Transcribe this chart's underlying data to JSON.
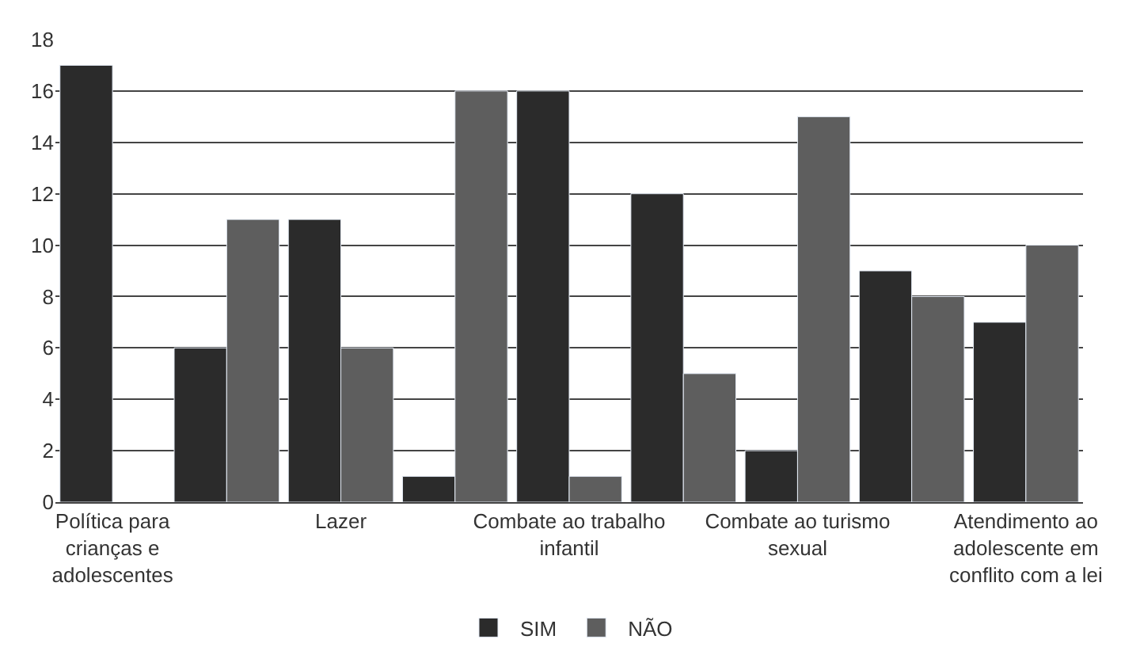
{
  "chart_data": {
    "type": "bar",
    "categories": [
      "Política para crianças e adolescentes",
      null,
      "Lazer",
      null,
      "Combate ao trabalho infantil",
      null,
      "Combate ao turismo sexual",
      null,
      "Atendimento ao adolescente em conflito com a lei"
    ],
    "series": [
      {
        "name": "SIM",
        "color": "#2b2b2b",
        "values": [
          17,
          6,
          11,
          1,
          16,
          12,
          2,
          9,
          7
        ]
      },
      {
        "name": "NÃO",
        "color": "#5e5e5e",
        "values": [
          null,
          11,
          6,
          16,
          1,
          5,
          15,
          8,
          10
        ]
      }
    ],
    "ylim": [
      0,
      18
    ],
    "yticks": [
      0,
      2,
      4,
      6,
      8,
      10,
      12,
      14,
      16,
      18
    ],
    "grid": "y",
    "legend": "bottom"
  }
}
